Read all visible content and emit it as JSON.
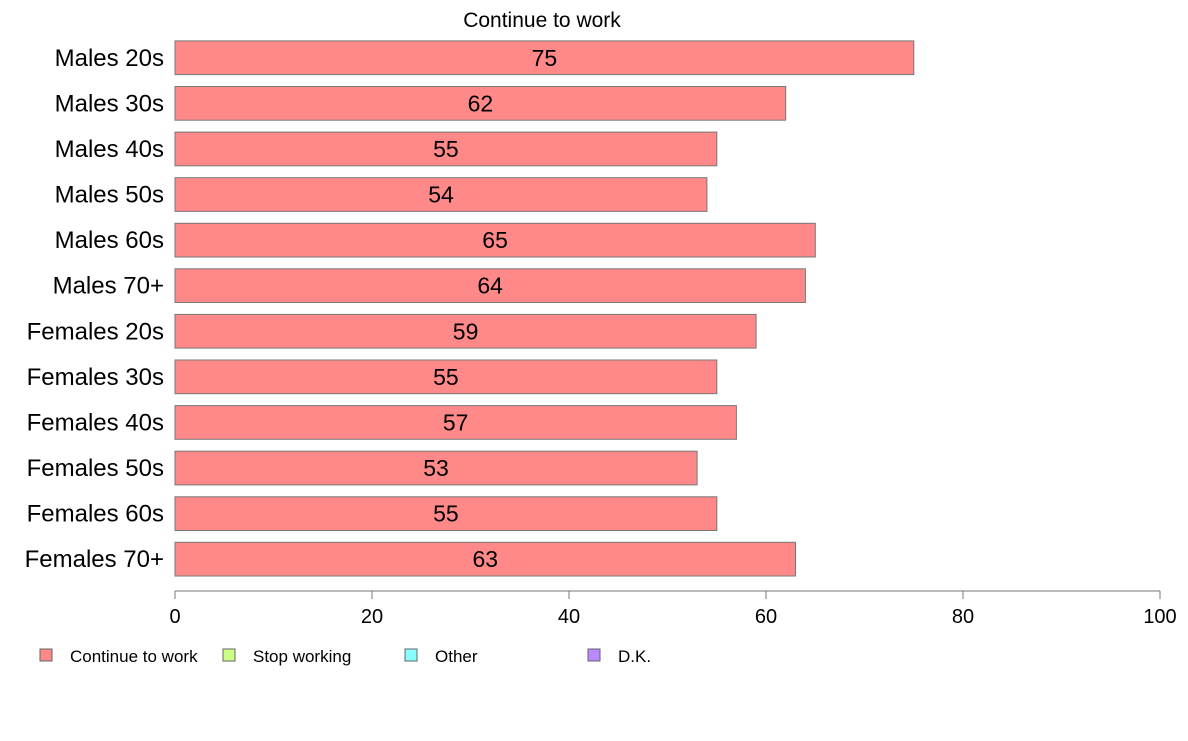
{
  "chart_data": {
    "type": "bar",
    "orientation": "horizontal",
    "title": "Continue to work",
    "categories": [
      "Males 20s",
      "Males 30s",
      "Males 40s",
      "Males 50s",
      "Males 60s",
      "Males 70+",
      "Females 20s",
      "Females 30s",
      "Females 40s",
      "Females 50s",
      "Females 60s",
      "Females 70+"
    ],
    "series": [
      {
        "name": "Continue to work",
        "values": [
          75,
          62,
          55,
          54,
          65,
          64,
          59,
          55,
          57,
          53,
          55,
          63
        ],
        "value_labels": [
          "75",
          "62",
          "55",
          "54",
          "65",
          "64",
          "59",
          "55",
          "57",
          "53",
          "55",
          "63"
        ]
      }
    ],
    "xlim": [
      0,
      100
    ],
    "xticks": [
      0,
      20,
      40,
      60,
      80,
      100
    ],
    "xtick_labels": [
      "0",
      "20",
      "40",
      "60",
      "80",
      "100"
    ],
    "grid": false,
    "legend": {
      "position": "bottom-left",
      "items": [
        {
          "label": "Continue to work",
          "color": "#ff8888"
        },
        {
          "label": "Stop working",
          "color": "#ccff88"
        },
        {
          "label": "Other",
          "color": "#88ffff"
        },
        {
          "label": "D.K.",
          "color": "#bb88ff"
        }
      ]
    },
    "bar_color": "#ff8888",
    "bar_edge_color": "#777777"
  }
}
